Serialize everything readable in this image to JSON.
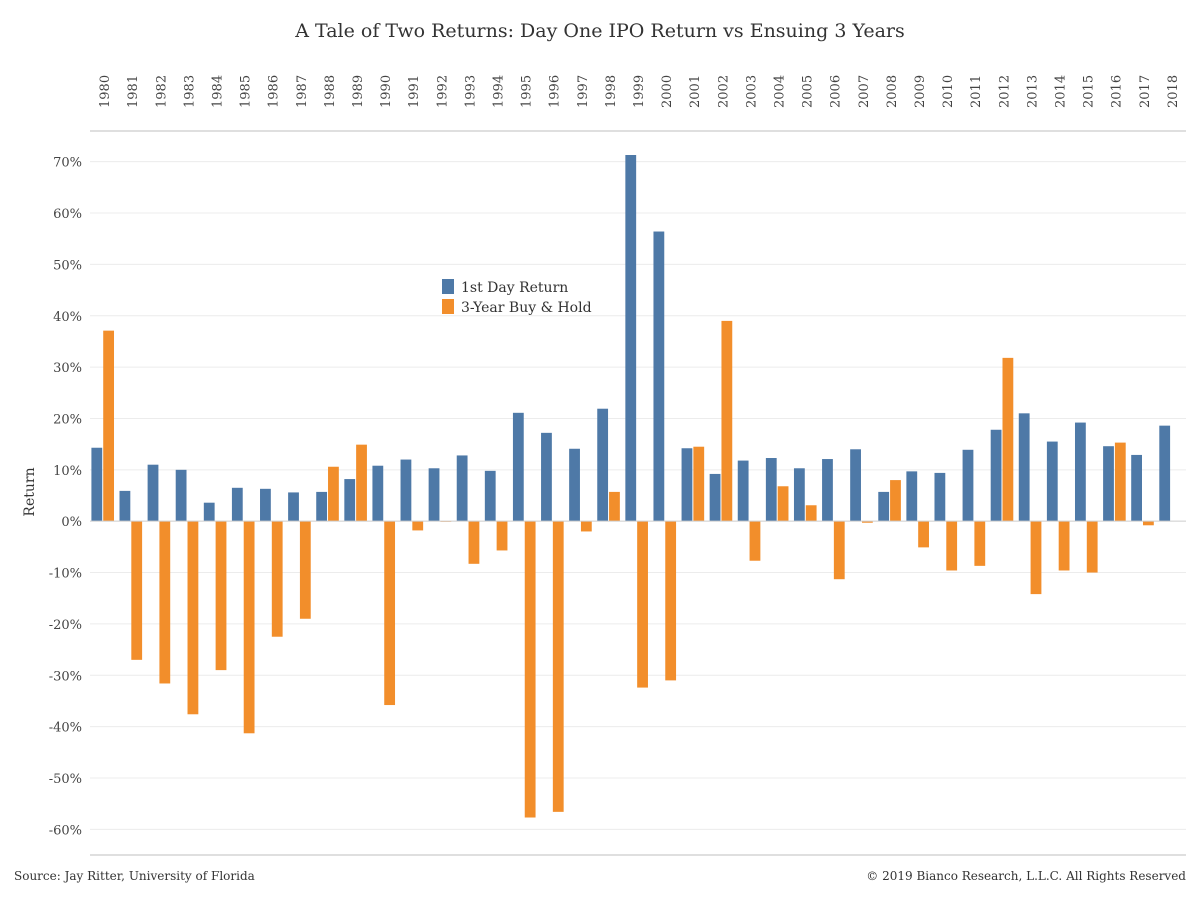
{
  "chart_data": {
    "type": "bar",
    "title": "A Tale of Two Returns: Day One IPO Return vs Ensuing 3 Years",
    "ylabel": "Return",
    "ylim": [
      -0.65,
      0.75
    ],
    "yticks": [
      0.7,
      0.6,
      0.5,
      0.4,
      0.3,
      0.2,
      0.1,
      0.0,
      -0.1,
      -0.2,
      -0.3,
      -0.4,
      -0.5,
      -0.6
    ],
    "ytick_labels": [
      "70%",
      "60%",
      "50%",
      "40%",
      "30%",
      "20%",
      "10%",
      "0%",
      "-10%",
      "-20%",
      "-30%",
      "-40%",
      "-50%",
      "-60%"
    ],
    "grid": true,
    "legend_position": "upper-center",
    "categories": [
      "1980",
      "1981",
      "1982",
      "1983",
      "1984",
      "1985",
      "1986",
      "1987",
      "1988",
      "1989",
      "1990",
      "1991",
      "1992",
      "1993",
      "1994",
      "1995",
      "1996",
      "1997",
      "1998",
      "1999",
      "2000",
      "2001",
      "2002",
      "2003",
      "2004",
      "2005",
      "2006",
      "2007",
      "2008",
      "2009",
      "2010",
      "2011",
      "2012",
      "2013",
      "2014",
      "2015",
      "2016",
      "2017",
      "2018"
    ],
    "series": [
      {
        "name": "1st Day Return",
        "color": "#4e79a7",
        "values": [
          0.143,
          0.059,
          0.11,
          0.1,
          0.036,
          0.065,
          0.063,
          0.056,
          0.057,
          0.082,
          0.108,
          0.12,
          0.103,
          0.128,
          0.098,
          0.211,
          0.172,
          0.141,
          0.219,
          0.713,
          0.564,
          0.142,
          0.092,
          0.118,
          0.123,
          0.103,
          0.121,
          0.14,
          0.057,
          0.097,
          0.094,
          0.139,
          0.178,
          0.21,
          0.155,
          0.192,
          0.146,
          0.129,
          0.186
        ]
      },
      {
        "name": "3-Year Buy & Hold",
        "color": "#f28e2b",
        "values": [
          0.371,
          -0.27,
          -0.316,
          -0.376,
          -0.29,
          -0.413,
          -0.225,
          -0.19,
          0.106,
          0.149,
          -0.358,
          -0.018,
          0.0,
          -0.083,
          -0.057,
          -0.577,
          -0.566,
          -0.02,
          0.057,
          -0.324,
          -0.31,
          0.145,
          0.39,
          -0.077,
          0.068,
          0.031,
          -0.113,
          -0.003,
          0.08,
          -0.051,
          -0.096,
          -0.087,
          0.318,
          -0.142,
          -0.096,
          -0.1,
          0.153,
          -0.008,
          null
        ]
      }
    ]
  },
  "footer": {
    "source": "Source: Jay Ritter, University of Florida",
    "copyright": "© 2019 Bianco Research, L.L.C. All Rights Reserved"
  }
}
